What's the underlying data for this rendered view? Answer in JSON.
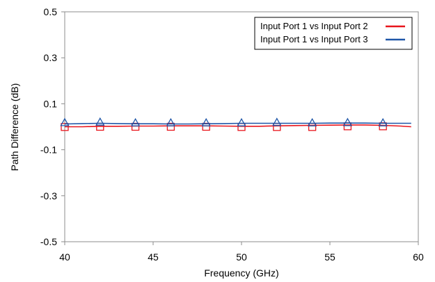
{
  "chart_data": {
    "type": "line",
    "title": "",
    "xlabel": "Frequency (GHz)",
    "ylabel": "Path Difference (dB)",
    "xlim": [
      40,
      60
    ],
    "ylim": [
      -0.5,
      0.5
    ],
    "xticks": [
      "40",
      "45",
      "50",
      "55",
      "60"
    ],
    "yticks": [
      "0.5",
      "0.3",
      "0.1",
      "-0.1",
      "-0.3",
      "-0.5"
    ],
    "grid": false,
    "legend_position": "top-right",
    "series": [
      {
        "name": "Input Port 1 vs Input Port 2",
        "color": "#e8141b",
        "marker": "square",
        "x": [
          40,
          41,
          42,
          43,
          44,
          45,
          46,
          47,
          48,
          49,
          50,
          51,
          52,
          53,
          54,
          55,
          56,
          57,
          58,
          59,
          59.6
        ],
        "y": [
          0.0,
          0.0,
          0.002,
          0.002,
          0.003,
          0.003,
          0.004,
          0.004,
          0.004,
          0.003,
          0.002,
          0.002,
          0.004,
          0.005,
          0.006,
          0.007,
          0.008,
          0.008,
          0.006,
          0.003,
          0.0
        ],
        "marker_x": [
          40,
          42,
          44,
          46,
          48,
          50,
          52,
          54,
          56,
          58
        ],
        "marker_y": [
          -0.001,
          0.0,
          0.0,
          0.0,
          0.0,
          -0.001,
          -0.001,
          -0.001,
          0.002,
          0.002
        ]
      },
      {
        "name": "Input Port 1 vs Input Port 3",
        "color": "#1f56a8",
        "marker": "triangle",
        "x": [
          40,
          41,
          42,
          43,
          44,
          45,
          46,
          47,
          48,
          49,
          50,
          51,
          52,
          53,
          54,
          55,
          56,
          57,
          58,
          59,
          59.6
        ],
        "y": [
          0.012,
          0.014,
          0.015,
          0.014,
          0.013,
          0.013,
          0.012,
          0.012,
          0.013,
          0.014,
          0.015,
          0.015,
          0.015,
          0.015,
          0.015,
          0.016,
          0.016,
          0.016,
          0.015,
          0.015,
          0.015
        ],
        "marker_x": [
          40,
          42,
          44,
          46,
          48,
          50,
          52,
          54,
          56,
          58
        ],
        "marker_y": [
          0.017,
          0.019,
          0.016,
          0.016,
          0.016,
          0.016,
          0.018,
          0.016,
          0.017,
          0.016
        ]
      }
    ]
  }
}
